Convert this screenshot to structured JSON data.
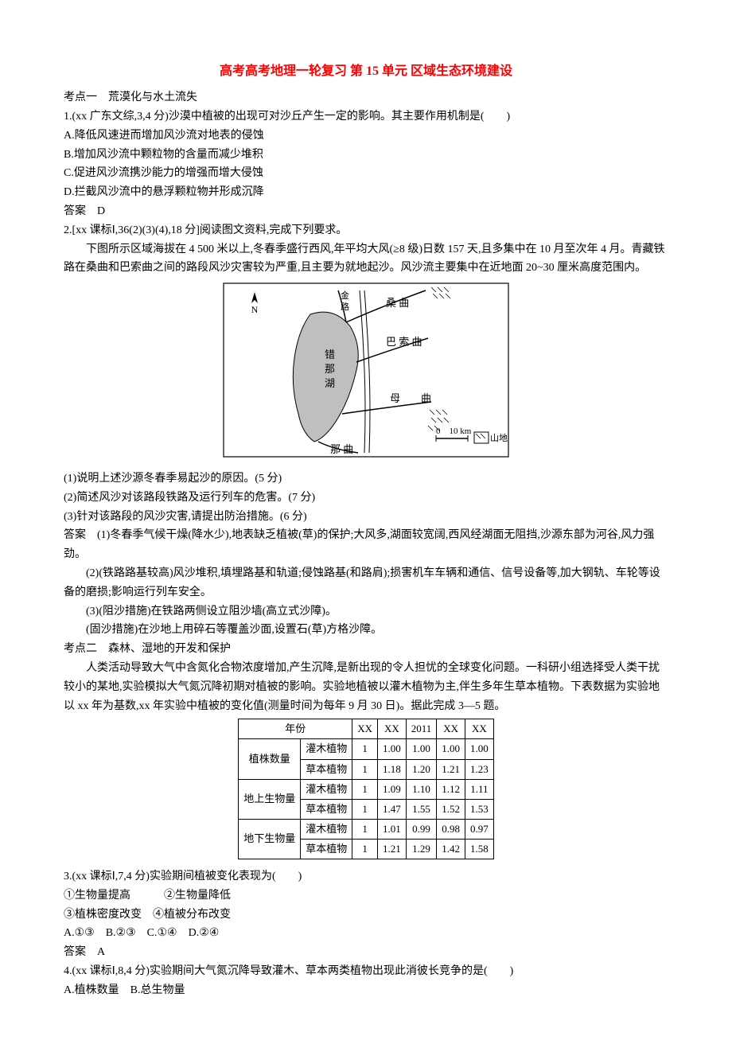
{
  "title": "高考高考地理一轮复习 第 15 单元 区域生态环境建设",
  "kaodian1_heading": "考点一　荒漠化与水土流失",
  "q1_stem": "1.(xx 广东文综,3,4 分)沙漠中植被的出现可对沙丘产生一定的影响。其主要作用机制是(　　)",
  "q1_a": "A.降低风速进而增加风沙流对地表的侵蚀",
  "q1_b": "B.增加风沙流中颗粒物的含量而减少堆积",
  "q1_c": "C.促进风沙流携沙能力的增强而增大侵蚀",
  "q1_d": "D.拦截风沙流中的悬浮颗粒物并形成沉降",
  "q1_ans": "答案　D",
  "q2_stem": "2.[xx 课标Ⅰ,36(2)(3)(4),18 分]阅读图文资料,完成下列要求。",
  "q2_para": "下图所示区域海拔在 4 500 米以上,冬春季盛行西风,年平均大风(≥8 级)日数 157 天,且多集中在 10 月至次年 4 月。青藏铁路在桑曲和巴索曲之间的路段风沙灾害较为严重,且主要为就地起沙。风沙流主要集中在近地面 20~30 厘米高度范围内。",
  "map_labels": {
    "n": "N",
    "sang": "桑 曲",
    "ba": "巴 索 曲",
    "lake": "错\n那\n湖",
    "mu": "母 曲",
    "na": "那 曲",
    "scale": "0　10 km",
    "legend": "山地",
    "jinlu": "金\n路"
  },
  "q2_sub1": "(1)说明上述沙源冬春季易起沙的原因。(5 分)",
  "q2_sub2": "(2)简述风沙对该路段铁路及运行列车的危害。(7 分)",
  "q2_sub3": "(3)针对该路段的风沙灾害,请提出防治措施。(6 分)",
  "q2_ans_head": "答案　(1)冬春季气候干燥(降水少),地表缺乏植被(草)的保护;大风多,湖面较宽阔,西风经湖面无阻挡,沙源东部为河谷,风力强劲。",
  "q2_ans2": "(2)(铁路路基较高)风沙堆积,填埋路基和轨道;侵蚀路基(和路肩);损害机车车辆和通信、信号设备等,加大钢轨、车轮等设备的磨损;影响运行列车安全。",
  "q2_ans3a": "(3)(阻沙措施)在铁路两侧设立阻沙墙(高立式沙障)。",
  "q2_ans3b": "(固沙措施)在沙地上用碎石等覆盖沙面,设置石(草)方格沙障。",
  "kaodian2_heading": "考点二　森林、湿地的开发和保护",
  "k2_para": "人类活动导致大气中含氮化合物浓度增加,产生沉降,是新出现的令人担忧的全球变化问题。一科研小组选择受人类干扰较小的某地,实验模拟大气氮沉降初期对植被的影响。实验地植被以灌木植物为主,伴生多年生草本植物。下表数据为实验地以 xx 年为基数,xx 年实验中植被的变化值(测量时间为每年 9 月 30 日)。据此完成 3—5 题。",
  "table": {
    "headers": [
      "年份",
      "XX",
      "XX",
      "2011",
      "XX",
      "XX"
    ],
    "row_groups": [
      {
        "group": "植株数量",
        "rows": [
          {
            "label": "灌木植物",
            "vals": [
              "1",
              "1.00",
              "1.00",
              "1.00",
              "1.00"
            ]
          },
          {
            "label": "草本植物",
            "vals": [
              "1",
              "1.18",
              "1.20",
              "1.21",
              "1.23"
            ]
          }
        ]
      },
      {
        "group": "地上生物量",
        "rows": [
          {
            "label": "灌木植物",
            "vals": [
              "1",
              "1.09",
              "1.10",
              "1.12",
              "1.11"
            ]
          },
          {
            "label": "草本植物",
            "vals": [
              "1",
              "1.47",
              "1.55",
              "1.52",
              "1.53"
            ]
          }
        ]
      },
      {
        "group": "地下生物量",
        "rows": [
          {
            "label": "灌木植物",
            "vals": [
              "1",
              "1.01",
              "0.99",
              "0.98",
              "0.97"
            ]
          },
          {
            "label": "草本植物",
            "vals": [
              "1",
              "1.21",
              "1.29",
              "1.42",
              "1.58"
            ]
          }
        ]
      }
    ]
  },
  "q3_stem": "3.(xx 课标Ⅰ,7,4 分)实验期间植被变化表现为(　　)",
  "q3_opt1": "①生物量提高　　　②生物量降低",
  "q3_opt2": "③植株密度改变　④植被分布改变",
  "q3_choices": "A.①③　B.②③　C.①④　D.②④",
  "q3_ans": "答案　A",
  "q4_stem": "4.(xx 课标Ⅰ,8,4 分)实验期间大气氮沉降导致灌木、草本两类植物出现此消彼长竞争的是(　　)",
  "q4_a": "A.植株数量　B.总生物量"
}
